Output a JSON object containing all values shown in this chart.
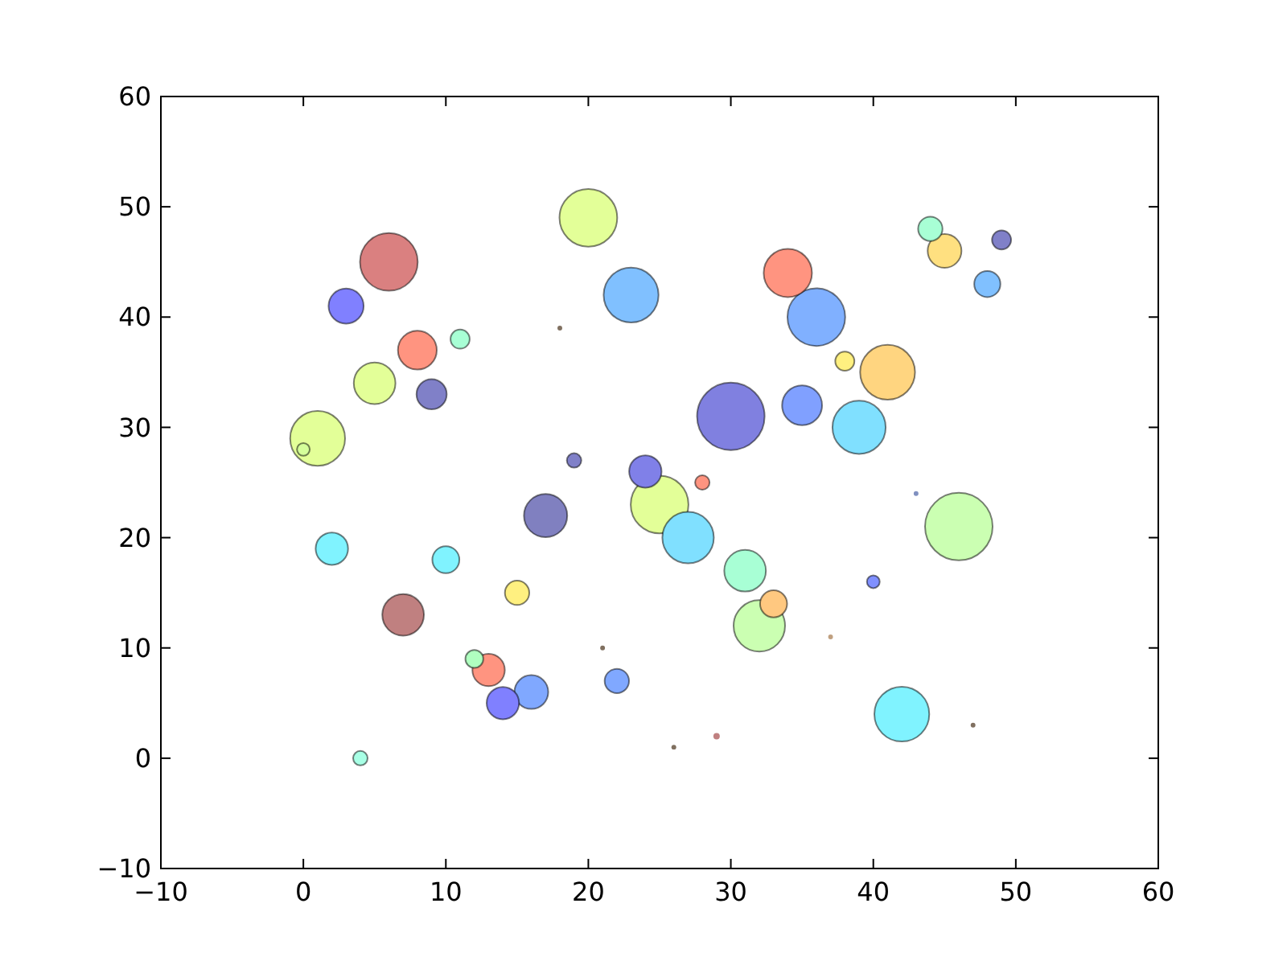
{
  "chart_data": {
    "type": "bubble",
    "xlim": [
      -10,
      60
    ],
    "ylim": [
      -10,
      60
    ],
    "xticks": [
      -10,
      0,
      10,
      20,
      30,
      40,
      50,
      60
    ],
    "yticks": [
      -10,
      0,
      10,
      20,
      30,
      40,
      50,
      60
    ],
    "grid": false,
    "x": [
      0,
      1,
      2,
      3,
      4,
      5,
      6,
      7,
      8,
      9,
      10,
      11,
      12,
      13,
      14,
      15,
      16,
      17,
      18,
      19,
      20,
      21,
      22,
      23,
      24,
      25,
      26,
      27,
      28,
      29,
      30,
      31,
      32,
      33,
      34,
      35,
      36,
      37,
      38,
      39,
      40,
      41,
      42,
      43,
      44,
      45,
      46,
      47,
      48,
      49
    ],
    "values": [
      28,
      29,
      19,
      41,
      0,
      34,
      45,
      13,
      37,
      33,
      18,
      38,
      9,
      8,
      5,
      15,
      6,
      22,
      39,
      27,
      49,
      10,
      7,
      42,
      26,
      23,
      1,
      20,
      25,
      2,
      31,
      17,
      12,
      14,
      44,
      32,
      40,
      11,
      36,
      30,
      16,
      35,
      4,
      24,
      48,
      46,
      21,
      3,
      43,
      47
    ],
    "sizes": [
      0.036,
      0.66,
      0.23,
      0.27,
      0.046,
      0.38,
      0.73,
      0.38,
      0.33,
      0.2,
      0.16,
      0.08,
      0.07,
      0.23,
      0.23,
      0.13,
      0.25,
      0.41,
      0.005,
      0.046,
      0.73,
      0.005,
      0.13,
      0.66,
      0.23,
      0.73,
      0.005,
      0.58,
      0.046,
      0.009,
      1,
      0.38,
      0.58,
      0.16,
      0.51,
      0.35,
      0.73,
      0.005,
      0.08,
      0.62,
      0.036,
      0.66,
      0.66,
      0.005,
      0.13,
      0.25,
      1,
      0.005,
      0.15,
      0.08
    ],
    "colors": [
      "#d5ff9a",
      "#e3ff98",
      "#80f3ff",
      "#8080ff",
      "#a8ffe5",
      "#e3ff98",
      "#da8080",
      "#c08080",
      "#ff9480",
      "#8080c8",
      "#80f3ff",
      "#a8ffd5",
      "#b0ffc0",
      "#ff9480",
      "#8080ff",
      "#fff080",
      "#80a8ff",
      "#8080c0",
      "#807060",
      "#8080c8",
      "#e3ff98",
      "#807060",
      "#80a8ff",
      "#80c0ff",
      "#8080e8",
      "#e3ff98",
      "#807060",
      "#80e0ff",
      "#ff9480",
      "#c08080",
      "#8080e0",
      "#a8ffd5",
      "#cbffb2",
      "#ffc880",
      "#ff9480",
      "#80a0ff",
      "#80b0ff",
      "#c0a080",
      "#fff080",
      "#80e0ff",
      "#8090ff",
      "#ffd580",
      "#80f3ff",
      "#8090c0",
      "#a8ffd5",
      "#ffe080",
      "#cbffb2",
      "#807060",
      "#80c0ff",
      "#8080c8"
    ]
  }
}
